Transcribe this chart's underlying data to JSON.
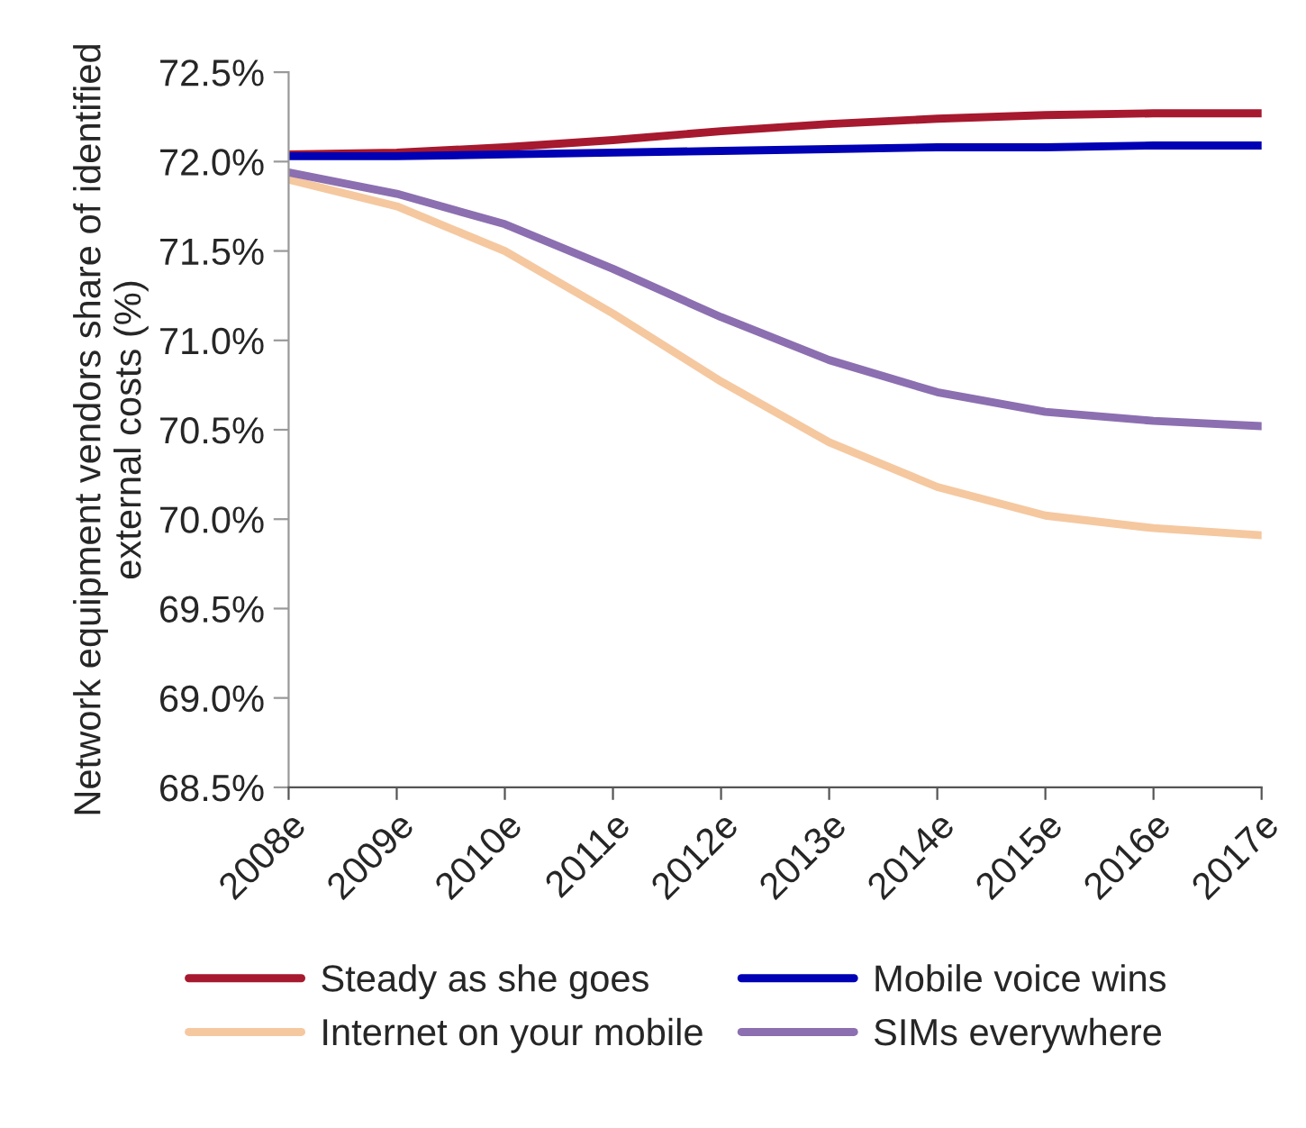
{
  "chart_data": {
    "type": "line",
    "ylabel": "Network equipment vendors share of identified\nexternal costs (%)",
    "categories": [
      "2008e",
      "2009e",
      "2010e",
      "2011e",
      "2012e",
      "2013e",
      "2014e",
      "2015e",
      "2016e",
      "2017e"
    ],
    "series": [
      {
        "name": "Steady as she goes",
        "color": "#a6192e",
        "values": [
          72.04,
          72.05,
          72.08,
          72.12,
          72.17,
          72.21,
          72.24,
          72.26,
          72.27,
          72.27
        ]
      },
      {
        "name": "Mobile voice wins",
        "color": "#0000b4",
        "values": [
          72.03,
          72.03,
          72.04,
          72.05,
          72.06,
          72.07,
          72.08,
          72.08,
          72.09,
          72.09
        ]
      },
      {
        "name": "Internet on your mobile",
        "color": "#f5c8a0",
        "values": [
          71.9,
          71.75,
          71.5,
          71.15,
          70.77,
          70.43,
          70.18,
          70.02,
          69.95,
          69.91
        ]
      },
      {
        "name": "SIMs everywhere",
        "color": "#8c6fb0",
        "values": [
          71.94,
          71.82,
          71.65,
          71.4,
          71.13,
          70.89,
          70.71,
          70.6,
          70.55,
          70.52
        ]
      }
    ],
    "ylim": [
      68.5,
      72.5
    ],
    "yticks": [
      {
        "value": 68.5,
        "label": "68.5%"
      },
      {
        "value": 69.0,
        "label": "69.0%"
      },
      {
        "value": 69.5,
        "label": "69.5%"
      },
      {
        "value": 70.0,
        "label": "70.0%"
      },
      {
        "value": 70.5,
        "label": "70.5%"
      },
      {
        "value": 71.0,
        "label": "71.0%"
      },
      {
        "value": 71.5,
        "label": "71.5%"
      },
      {
        "value": 72.0,
        "label": "72.0%"
      },
      {
        "value": 72.5,
        "label": "72.5%"
      }
    ],
    "legend": "bottom",
    "grid": false,
    "marker": "none",
    "line_style": "solid"
  }
}
